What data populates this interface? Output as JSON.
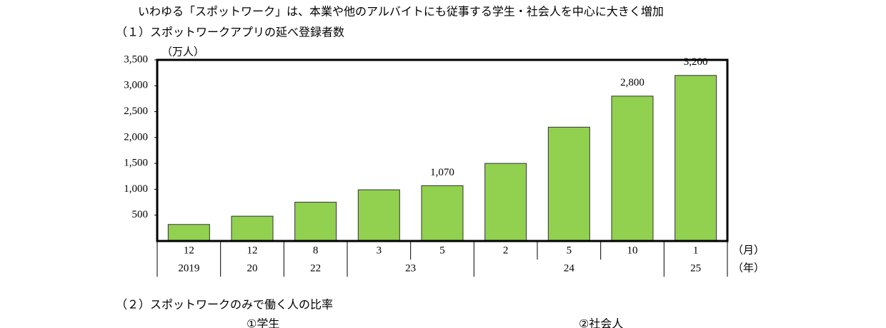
{
  "header": {
    "title": "いわゆる「スポットワーク」は、本業や他のアルバイトにも従事する学生・社会人を中心に大きく増加"
  },
  "chart_data": {
    "type": "bar",
    "title": "（１）スポットワークアプリの延べ登録者数",
    "y_unit": "（万人）",
    "x_unit_month": "（月）",
    "x_unit_year": "（年）",
    "categories": [
      "12",
      "12",
      "8",
      "3",
      "5",
      "2",
      "5",
      "10",
      "1"
    ],
    "year_groups": [
      {
        "label": "2019",
        "count": 1
      },
      {
        "label": "20",
        "count": 1
      },
      {
        "label": "22",
        "count": 1
      },
      {
        "label": "23",
        "count": 2
      },
      {
        "label": "24",
        "count": 3
      },
      {
        "label": "25",
        "count": 1
      }
    ],
    "values": [
      320,
      480,
      750,
      990,
      1070,
      1500,
      2200,
      2800,
      3200
    ],
    "value_labels": [
      null,
      null,
      null,
      null,
      "1,070",
      null,
      null,
      "2,800",
      "3,200"
    ],
    "color": "#92d050",
    "ylim": [
      0,
      3500
    ],
    "yticks": [
      500,
      {
        "value": 1000,
        "label": "1,000"
      },
      {
        "value": 1500,
        "label": "1,500"
      },
      {
        "value": 2000,
        "label": "2,000"
      },
      {
        "value": 2500,
        "label": "2,500"
      },
      {
        "value": 3000,
        "label": "3,000"
      },
      {
        "value": 3500,
        "label": "3,500"
      }
    ]
  },
  "section2": {
    "title": "（２）スポットワークのみで働く人の比率",
    "left_label": "①学生",
    "right_label": "②社会人"
  }
}
